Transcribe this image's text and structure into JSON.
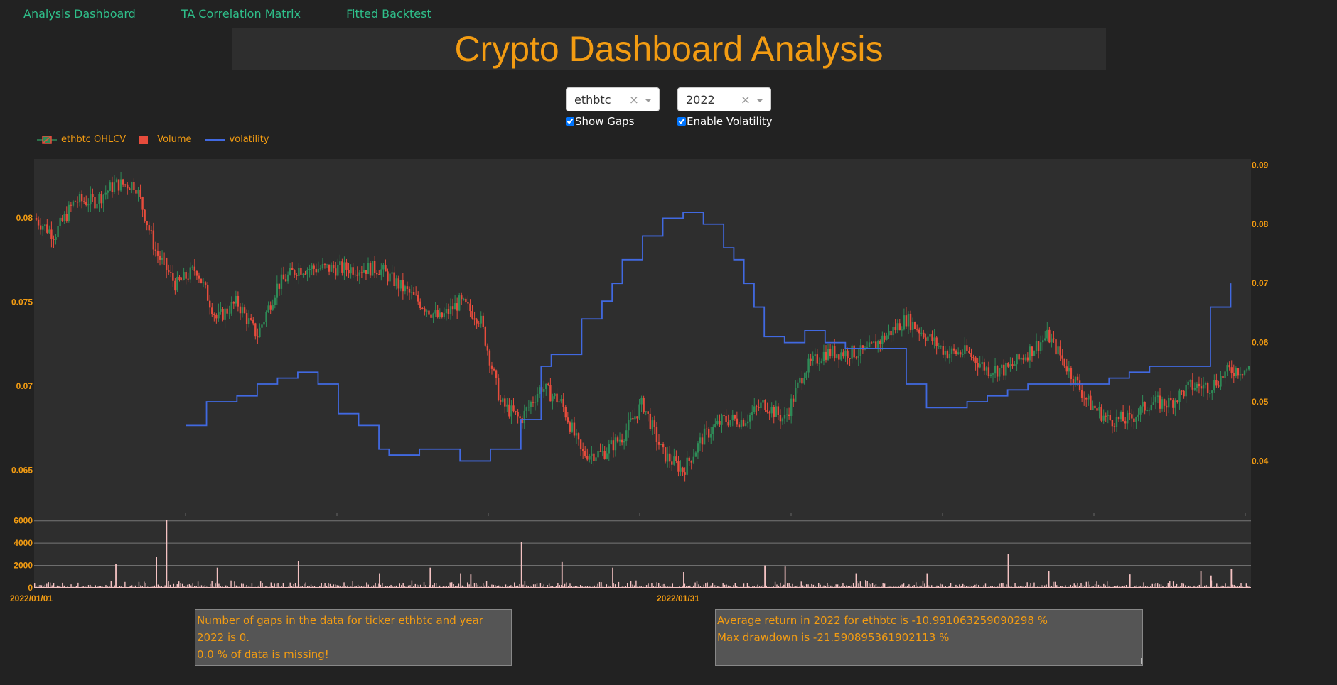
{
  "nav": {
    "items": [
      "Analysis Dashboard",
      "TA Correlation Matrix",
      "Fitted Backtest"
    ]
  },
  "header": {
    "title": "Crypto Dashboard Analysis"
  },
  "controls": {
    "ticker": {
      "value": "ethbtc",
      "clear_icon": "×"
    },
    "year": {
      "value": "2022",
      "clear_icon": "×"
    },
    "show_gaps": {
      "label": "Show Gaps",
      "checked": true
    },
    "enable_volatility": {
      "label": "Enable Volatility",
      "checked": true
    }
  },
  "legend": {
    "ohlcv": "ethbtc OHLCV",
    "volume": "Volume",
    "volatility": "volatility"
  },
  "colors": {
    "up": "#2e8b57",
    "down": "#e74c3c",
    "volatility": "#4169e1",
    "volume": "#f4c2c2",
    "accent": "#f39c12",
    "nav": "#2fbf8a"
  },
  "chart_data": {
    "type": "line",
    "price_axis": {
      "ticks": [
        "0.08",
        "0.075",
        "0.07",
        "0.065"
      ],
      "range": [
        0.0625,
        0.0835
      ]
    },
    "volatility_axis": {
      "ticks": [
        "0.09",
        "0.08",
        "0.07",
        "0.06",
        "0.05",
        "0.04"
      ],
      "range": [
        0.0313,
        0.091
      ]
    },
    "volume_axis": {
      "ticks": [
        "6000",
        "4000",
        "2000",
        "0"
      ],
      "range": [
        0,
        6300
      ]
    },
    "x_ticks": [
      "2022/01/01",
      "2022/01/31"
    ],
    "series": [
      {
        "name": "ethbtc OHLCV",
        "kind": "candlestick-close",
        "x_days": [
          0,
          1,
          2,
          3,
          4,
          5,
          6,
          7,
          8,
          9,
          10,
          11,
          12,
          13,
          14,
          15,
          16,
          17,
          18,
          19,
          20,
          21,
          22,
          23,
          24,
          25,
          26,
          27,
          28,
          29,
          30,
          31,
          32,
          33,
          34,
          35,
          36,
          37,
          38,
          39,
          40,
          41,
          42,
          43,
          44,
          45,
          46,
          47,
          48,
          49,
          50,
          51,
          52,
          53,
          54,
          55,
          56,
          57,
          58,
          59
        ],
        "values": [
          0.08,
          0.079,
          0.081,
          0.081,
          0.082,
          0.082,
          0.078,
          0.076,
          0.077,
          0.074,
          0.075,
          0.073,
          0.076,
          0.077,
          0.077,
          0.077,
          0.077,
          0.077,
          0.076,
          0.075,
          0.074,
          0.075,
          0.074,
          0.069,
          0.068,
          0.07,
          0.069,
          0.066,
          0.066,
          0.067,
          0.069,
          0.066,
          0.065,
          0.067,
          0.068,
          0.068,
          0.069,
          0.068,
          0.071,
          0.072,
          0.072,
          0.072,
          0.073,
          0.074,
          0.073,
          0.072,
          0.072,
          0.071,
          0.071,
          0.072,
          0.073,
          0.071,
          0.069,
          0.068,
          0.068,
          0.069,
          0.069,
          0.07,
          0.07,
          0.071
        ]
      },
      {
        "name": "volatility",
        "kind": "line",
        "x_days": [
          7.5,
          8.0,
          8.5,
          10.0,
          11.0,
          12.0,
          13.0,
          14.0,
          15.0,
          16.0,
          17.0,
          17.5,
          19.0,
          21.0,
          22.0,
          22.5,
          24.0,
          25.0,
          25.5,
          27.0,
          28.0,
          28.5,
          29.0,
          30.0,
          31.0,
          32.0,
          33.0,
          34.0,
          34.5,
          35.0,
          35.5,
          36.0,
          37.0,
          38.0,
          39.0,
          40.0,
          41.0,
          42.0,
          43.0,
          44.0,
          45.0,
          46.0,
          47.0,
          48.0,
          49.0,
          50.0,
          51.0,
          52.0,
          53.0,
          54.0,
          55.0,
          56.0,
          57.0,
          58.0,
          59.0
        ],
        "values": [
          0.046,
          0.046,
          0.05,
          0.051,
          0.053,
          0.054,
          0.055,
          0.053,
          0.048,
          0.046,
          0.042,
          0.041,
          0.042,
          0.04,
          0.04,
          0.042,
          0.047,
          0.056,
          0.058,
          0.064,
          0.067,
          0.07,
          0.074,
          0.078,
          0.081,
          0.082,
          0.08,
          0.076,
          0.074,
          0.07,
          0.066,
          0.061,
          0.06,
          0.062,
          0.06,
          0.059,
          0.059,
          0.059,
          0.053,
          0.049,
          0.049,
          0.05,
          0.051,
          0.052,
          0.053,
          0.053,
          0.053,
          0.053,
          0.054,
          0.055,
          0.056,
          0.056,
          0.056,
          0.066,
          0.07
        ]
      },
      {
        "name": "Volume",
        "kind": "bar",
        "spikes_days": [
          4.0,
          6.0,
          6.5,
          9.0,
          13.0,
          17.0,
          19.5,
          21.0,
          21.5,
          24.0,
          26.0,
          28.5,
          32.0,
          36.0,
          37.0,
          40.5,
          44.0,
          48.0,
          50.0,
          54.0,
          57.5,
          58.0,
          59.0
        ],
        "spikes_values": [
          2100,
          2800,
          6100,
          1800,
          2400,
          1300,
          1800,
          1300,
          1200,
          4100,
          2300,
          1800,
          1400,
          2000,
          1900,
          1300,
          1300,
          3000,
          1500,
          1200,
          1500,
          1100,
          1700
        ],
        "baseline": 300
      }
    ]
  },
  "info": {
    "gaps_line1": "Number of gaps in the data for ticker ethbtc and year 2022 is 0.",
    "gaps_line2": "0.0 % of data is missing!",
    "return_line1": "Average return in 2022 for ethbtc is -10.991063259090298 %",
    "return_line2": "Max drawdown is -21.590895361902113 %"
  }
}
